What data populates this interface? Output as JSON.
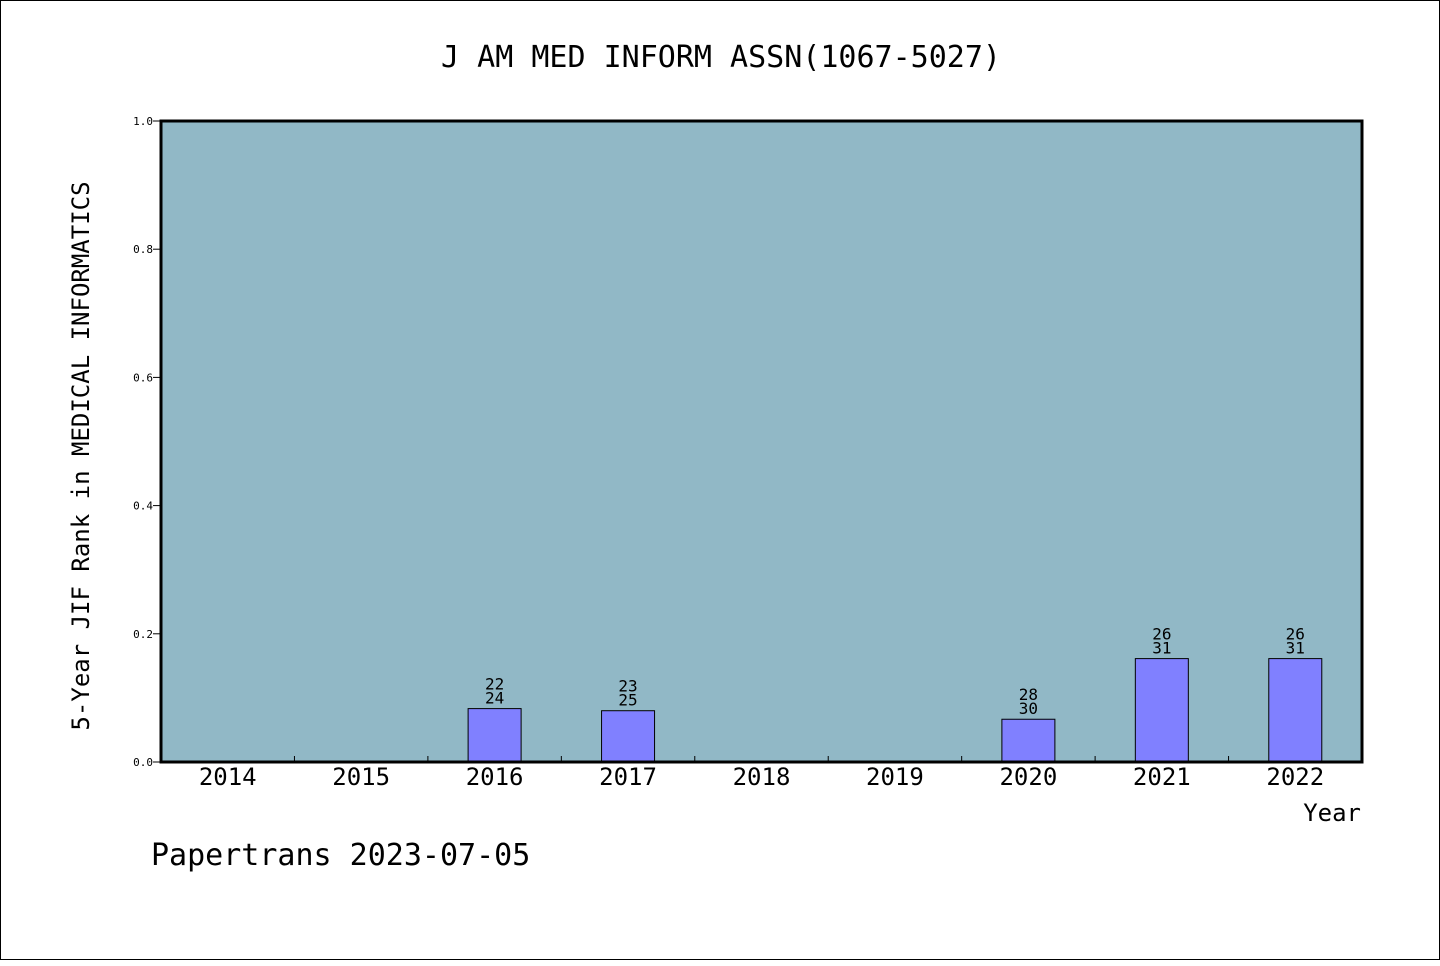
{
  "chart_data": {
    "type": "bar",
    "title": "J AM MED INFORM ASSN(1067-5027)",
    "ylabel": "5-Year JIF Rank in MEDICAL INFORMATICS",
    "xlabel": "Year",
    "ylim": [
      0,
      1.0
    ],
    "yticks": [
      "0.0",
      "0.2",
      "0.4",
      "0.6",
      "0.8",
      "1.0"
    ],
    "categories": [
      "2014",
      "2015",
      "2016",
      "2017",
      "2018",
      "2019",
      "2020",
      "2021",
      "2022"
    ],
    "bars": [
      {
        "year": "2016",
        "value": 0.0833,
        "rank": "22",
        "total": "24"
      },
      {
        "year": "2017",
        "value": 0.08,
        "rank": "23",
        "total": "25"
      },
      {
        "year": "2020",
        "value": 0.0667,
        "rank": "28",
        "total": "30"
      },
      {
        "year": "2021",
        "value": 0.1613,
        "rank": "26",
        "total": "31"
      },
      {
        "year": "2022",
        "value": 0.1613,
        "rank": "26",
        "total": "31"
      }
    ],
    "grid": false,
    "colors": {
      "plot_bg": "#91b8c6",
      "bar": "#8080ff"
    }
  },
  "footer": "Papertrans 2023-07-05"
}
